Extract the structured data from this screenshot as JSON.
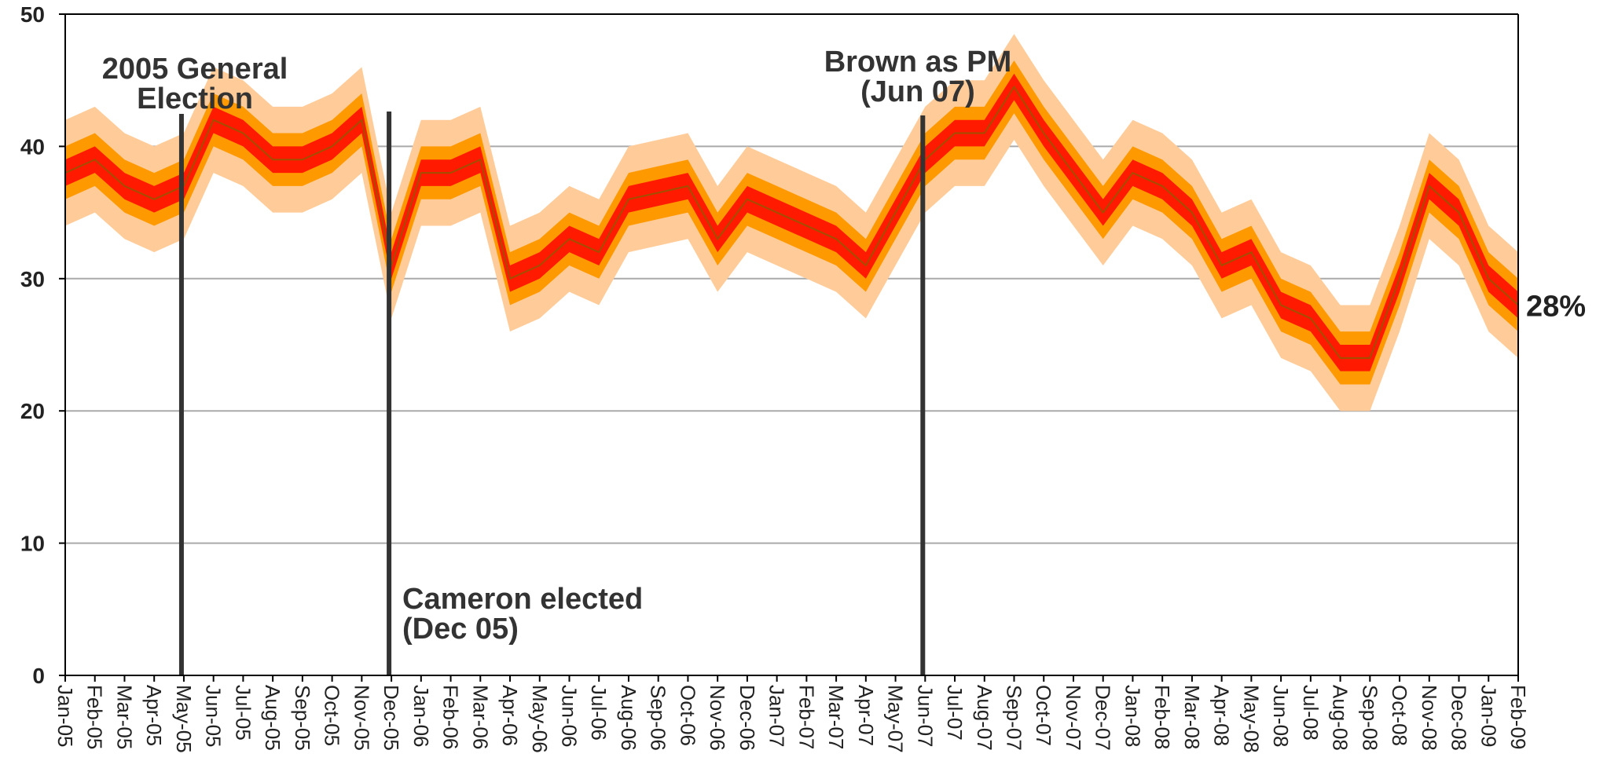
{
  "chart_data": {
    "type": "area",
    "title": "",
    "xlabel": "",
    "ylabel": "",
    "ylim": [
      0,
      50
    ],
    "yticks": [
      0,
      10,
      20,
      30,
      40,
      50
    ],
    "grid": true,
    "categories": [
      "Jan-05",
      "Feb-05",
      "Mar-05",
      "Apr-05",
      "May-05",
      "Jun-05",
      "Jul-05",
      "Aug-05",
      "Sep-05",
      "Oct-05",
      "Nov-05",
      "Dec-05",
      "Jan-06",
      "Feb-06",
      "Mar-06",
      "Apr-06",
      "May-06",
      "Jun-06",
      "Jul-06",
      "Aug-06",
      "Sep-06",
      "Oct-06",
      "Nov-06",
      "Dec-06",
      "Jan-07",
      "Feb-07",
      "Mar-07",
      "Apr-07",
      "May-07",
      "Jun-07",
      "Jul-07",
      "Aug-07",
      "Sep-07",
      "Oct-07",
      "Nov-07",
      "Dec-07",
      "Jan-08",
      "Feb-08",
      "Mar-08",
      "Apr-08",
      "May-08",
      "Jun-08",
      "Jul-08",
      "Aug-08",
      "Sep-08",
      "Oct-08",
      "Nov-08",
      "Dec-08",
      "Jan-09",
      "Feb-09"
    ],
    "central": [
      38,
      39,
      37,
      36,
      37,
      42,
      41,
      39,
      39,
      40,
      42,
      31,
      38,
      38,
      39,
      30,
      31,
      33,
      32,
      36,
      36.5,
      37,
      33,
      36,
      35,
      34,
      33,
      31,
      35,
      39,
      41,
      41,
      44.5,
      41,
      38,
      35,
      38,
      37,
      35,
      31,
      32,
      28,
      27,
      24,
      24,
      30,
      37,
      35,
      30,
      28
    ],
    "band_offsets": [
      1,
      2,
      4
    ],
    "band_colors": [
      "#ff1a00",
      "#ff9900",
      "#ffcc99"
    ],
    "line_color": "#a05000",
    "events": [
      {
        "label_lines": [
          "2005 General",
          "Election"
        ],
        "x": "May-05"
      },
      {
        "label_lines": [
          "Cameron elected",
          "(Dec 05)"
        ],
        "x": "Dec-05"
      },
      {
        "label_lines": [
          "Brown as PM",
          "(Jun 07)"
        ],
        "x": "Jun-07"
      }
    ],
    "end_label": "28%",
    "event_line_color": "#333333",
    "grid_color": "#aaaaaa"
  }
}
